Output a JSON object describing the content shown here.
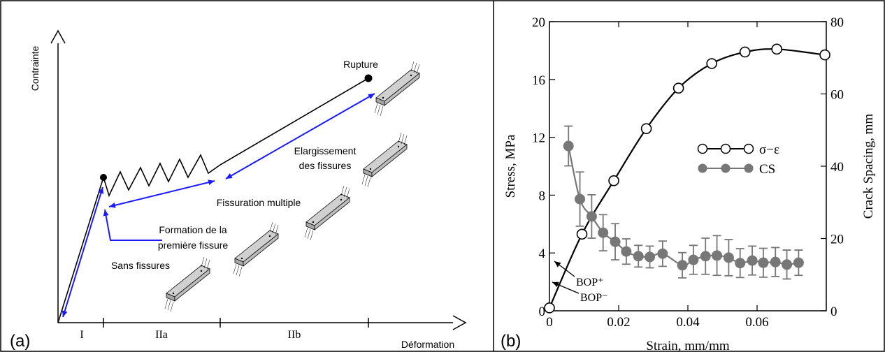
{
  "diagram": {
    "panel_label": "(a)",
    "y_axis_label": "Contrainte",
    "x_axis_label": "Déformation",
    "regions": [
      "I",
      "IIa",
      "IIb"
    ],
    "rupture": "Rupture",
    "widening": [
      "Elargissement",
      "des fissures"
    ],
    "multiple_cracking": "Fissuration multiple",
    "first_crack": [
      "Formation de la",
      "première fissure"
    ],
    "no_cracks": "Sans fissures"
  },
  "chart_data": {
    "type": "line",
    "panel_label": "(b)",
    "x_label": "Strain, mm/mm",
    "y_label": "Stress, MPa",
    "y2_label": "Crack Spacing, mm",
    "xlim": [
      0,
      0.08
    ],
    "xticks": [
      0,
      0.02,
      0.04,
      0.06
    ],
    "ylim": [
      0,
      20
    ],
    "yticks": [
      0,
      4,
      8,
      12,
      16,
      20
    ],
    "y2lim": [
      0,
      80
    ],
    "y2ticks": [
      0,
      20,
      40,
      60,
      80
    ],
    "annotations": [
      "BOP⁺",
      "BOP⁻"
    ],
    "series": [
      {
        "name": "σ−ε",
        "color": "#000000",
        "marker": "open-circle",
        "x": [
          0,
          0.0094,
          0.0186,
          0.028,
          0.0373,
          0.0469,
          0.0565,
          0.0657,
          0.0796
        ],
        "values": [
          0.2,
          5.3,
          9,
          12.6,
          15.4,
          17.1,
          17.9,
          18.1,
          17.7
        ]
      },
      {
        "name": "CS",
        "color": "#777777",
        "marker": "filled-circle",
        "axis": "y2",
        "x": [
          0.0055,
          0.0088,
          0.0122,
          0.0155,
          0.019,
          0.0222,
          0.0257,
          0.029,
          0.0327,
          0.0384,
          0.0416,
          0.0451,
          0.0484,
          0.0518,
          0.0551,
          0.0586,
          0.0618,
          0.0653,
          0.0686,
          0.072
        ],
        "values": [
          45.6,
          30.9,
          26.1,
          21.6,
          19.1,
          16.4,
          15.1,
          14.9,
          15.8,
          12.6,
          14.1,
          15.1,
          15.3,
          14.7,
          13.2,
          13.9,
          13.3,
          13.5,
          12.8,
          13.3
        ],
        "errors": [
          5.5,
          7.5,
          6,
          5,
          5,
          3.5,
          3,
          3,
          3.5,
          3.5,
          4,
          5,
          5.5,
          5,
          4,
          4,
          4,
          4,
          4,
          3.5
        ]
      }
    ]
  }
}
